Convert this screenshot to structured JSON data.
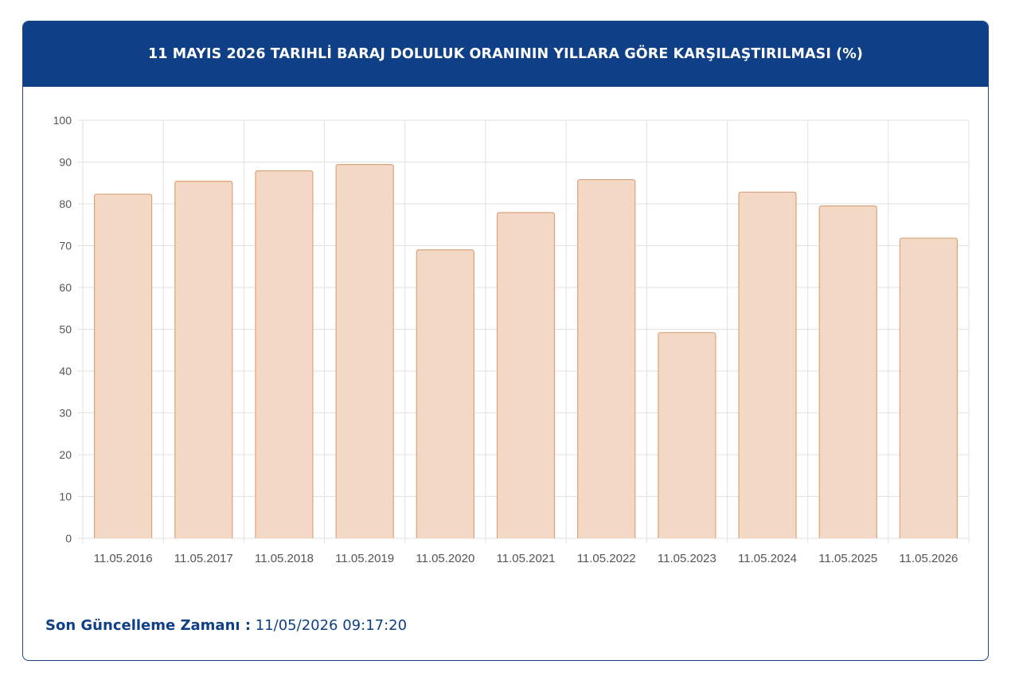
{
  "header": {
    "title": "11 MAYIS 2026 TARIHLİ BARAJ DOLULUK ORANININ YILLARA GÖRE KARŞILAŞTIRILMASI (%)"
  },
  "chart_data": {
    "type": "bar",
    "title": "11 MAYIS 2026 TARIHLİ BARAJ DOLULUK ORANININ YILLARA GÖRE KARŞILAŞTIRILMASI (%)",
    "categories": [
      "11.05.2016",
      "11.05.2017",
      "11.05.2018",
      "11.05.2019",
      "11.05.2020",
      "11.05.2021",
      "11.05.2022",
      "11.05.2023",
      "11.05.2024",
      "11.05.2025",
      "11.05.2026"
    ],
    "values": [
      82.3,
      85.4,
      87.9,
      89.4,
      69.0,
      77.9,
      85.8,
      49.2,
      82.8,
      79.5,
      71.8
    ],
    "ylim": [
      0,
      100
    ],
    "yticks": [
      0,
      10,
      20,
      30,
      40,
      50,
      60,
      70,
      80,
      90,
      100
    ],
    "grid": true,
    "legend": "none",
    "bar_fill": "#f3d9c5",
    "bar_stroke": "#dba37c"
  },
  "footer": {
    "label": "Son Güncelleme Zamanı :",
    "value": "11/05/2026 09:17:20"
  }
}
